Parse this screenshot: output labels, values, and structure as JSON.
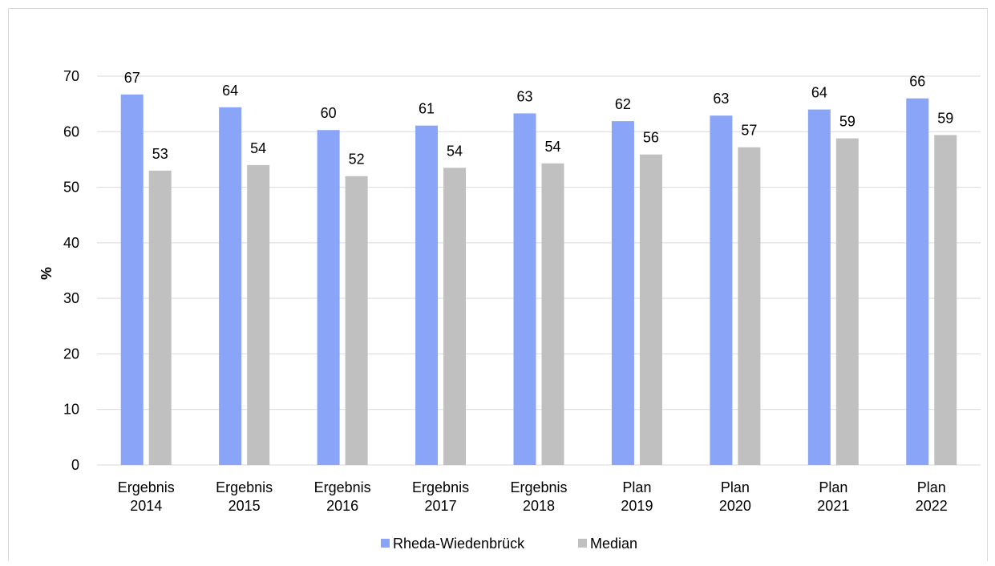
{
  "chart_data": {
    "type": "bar",
    "title": "",
    "xlabel": "",
    "ylabel": "%",
    "ylim": [
      0,
      70
    ],
    "yticks": [
      0,
      10,
      20,
      30,
      40,
      50,
      60,
      70
    ],
    "grid": true,
    "legend_position": "bottom",
    "categories": [
      [
        "Ergebnis",
        "2014"
      ],
      [
        "Ergebnis",
        "2015"
      ],
      [
        "Ergebnis",
        "2016"
      ],
      [
        "Ergebnis",
        "2017"
      ],
      [
        "Ergebnis",
        "2018"
      ],
      [
        "Plan",
        "2019"
      ],
      [
        "Plan",
        "2020"
      ],
      [
        "Plan",
        "2021"
      ],
      [
        "Plan",
        "2022"
      ]
    ],
    "series": [
      {
        "name": "Rheda-Wiedenbrück",
        "color": "#8aa5f7",
        "values": [
          66.7,
          64.4,
          60.3,
          61.1,
          63.3,
          61.9,
          62.9,
          64.0,
          66.0
        ],
        "labels": [
          "67",
          "64",
          "60",
          "61",
          "63",
          "62",
          "63",
          "64",
          "66"
        ]
      },
      {
        "name": "Median",
        "color": "#c0c0c0",
        "values": [
          53.0,
          54.0,
          52.0,
          53.5,
          54.3,
          55.9,
          57.2,
          58.8,
          59.4
        ],
        "labels": [
          "53",
          "54",
          "52",
          "54",
          "54",
          "56",
          "57",
          "59",
          "59"
        ]
      }
    ]
  }
}
